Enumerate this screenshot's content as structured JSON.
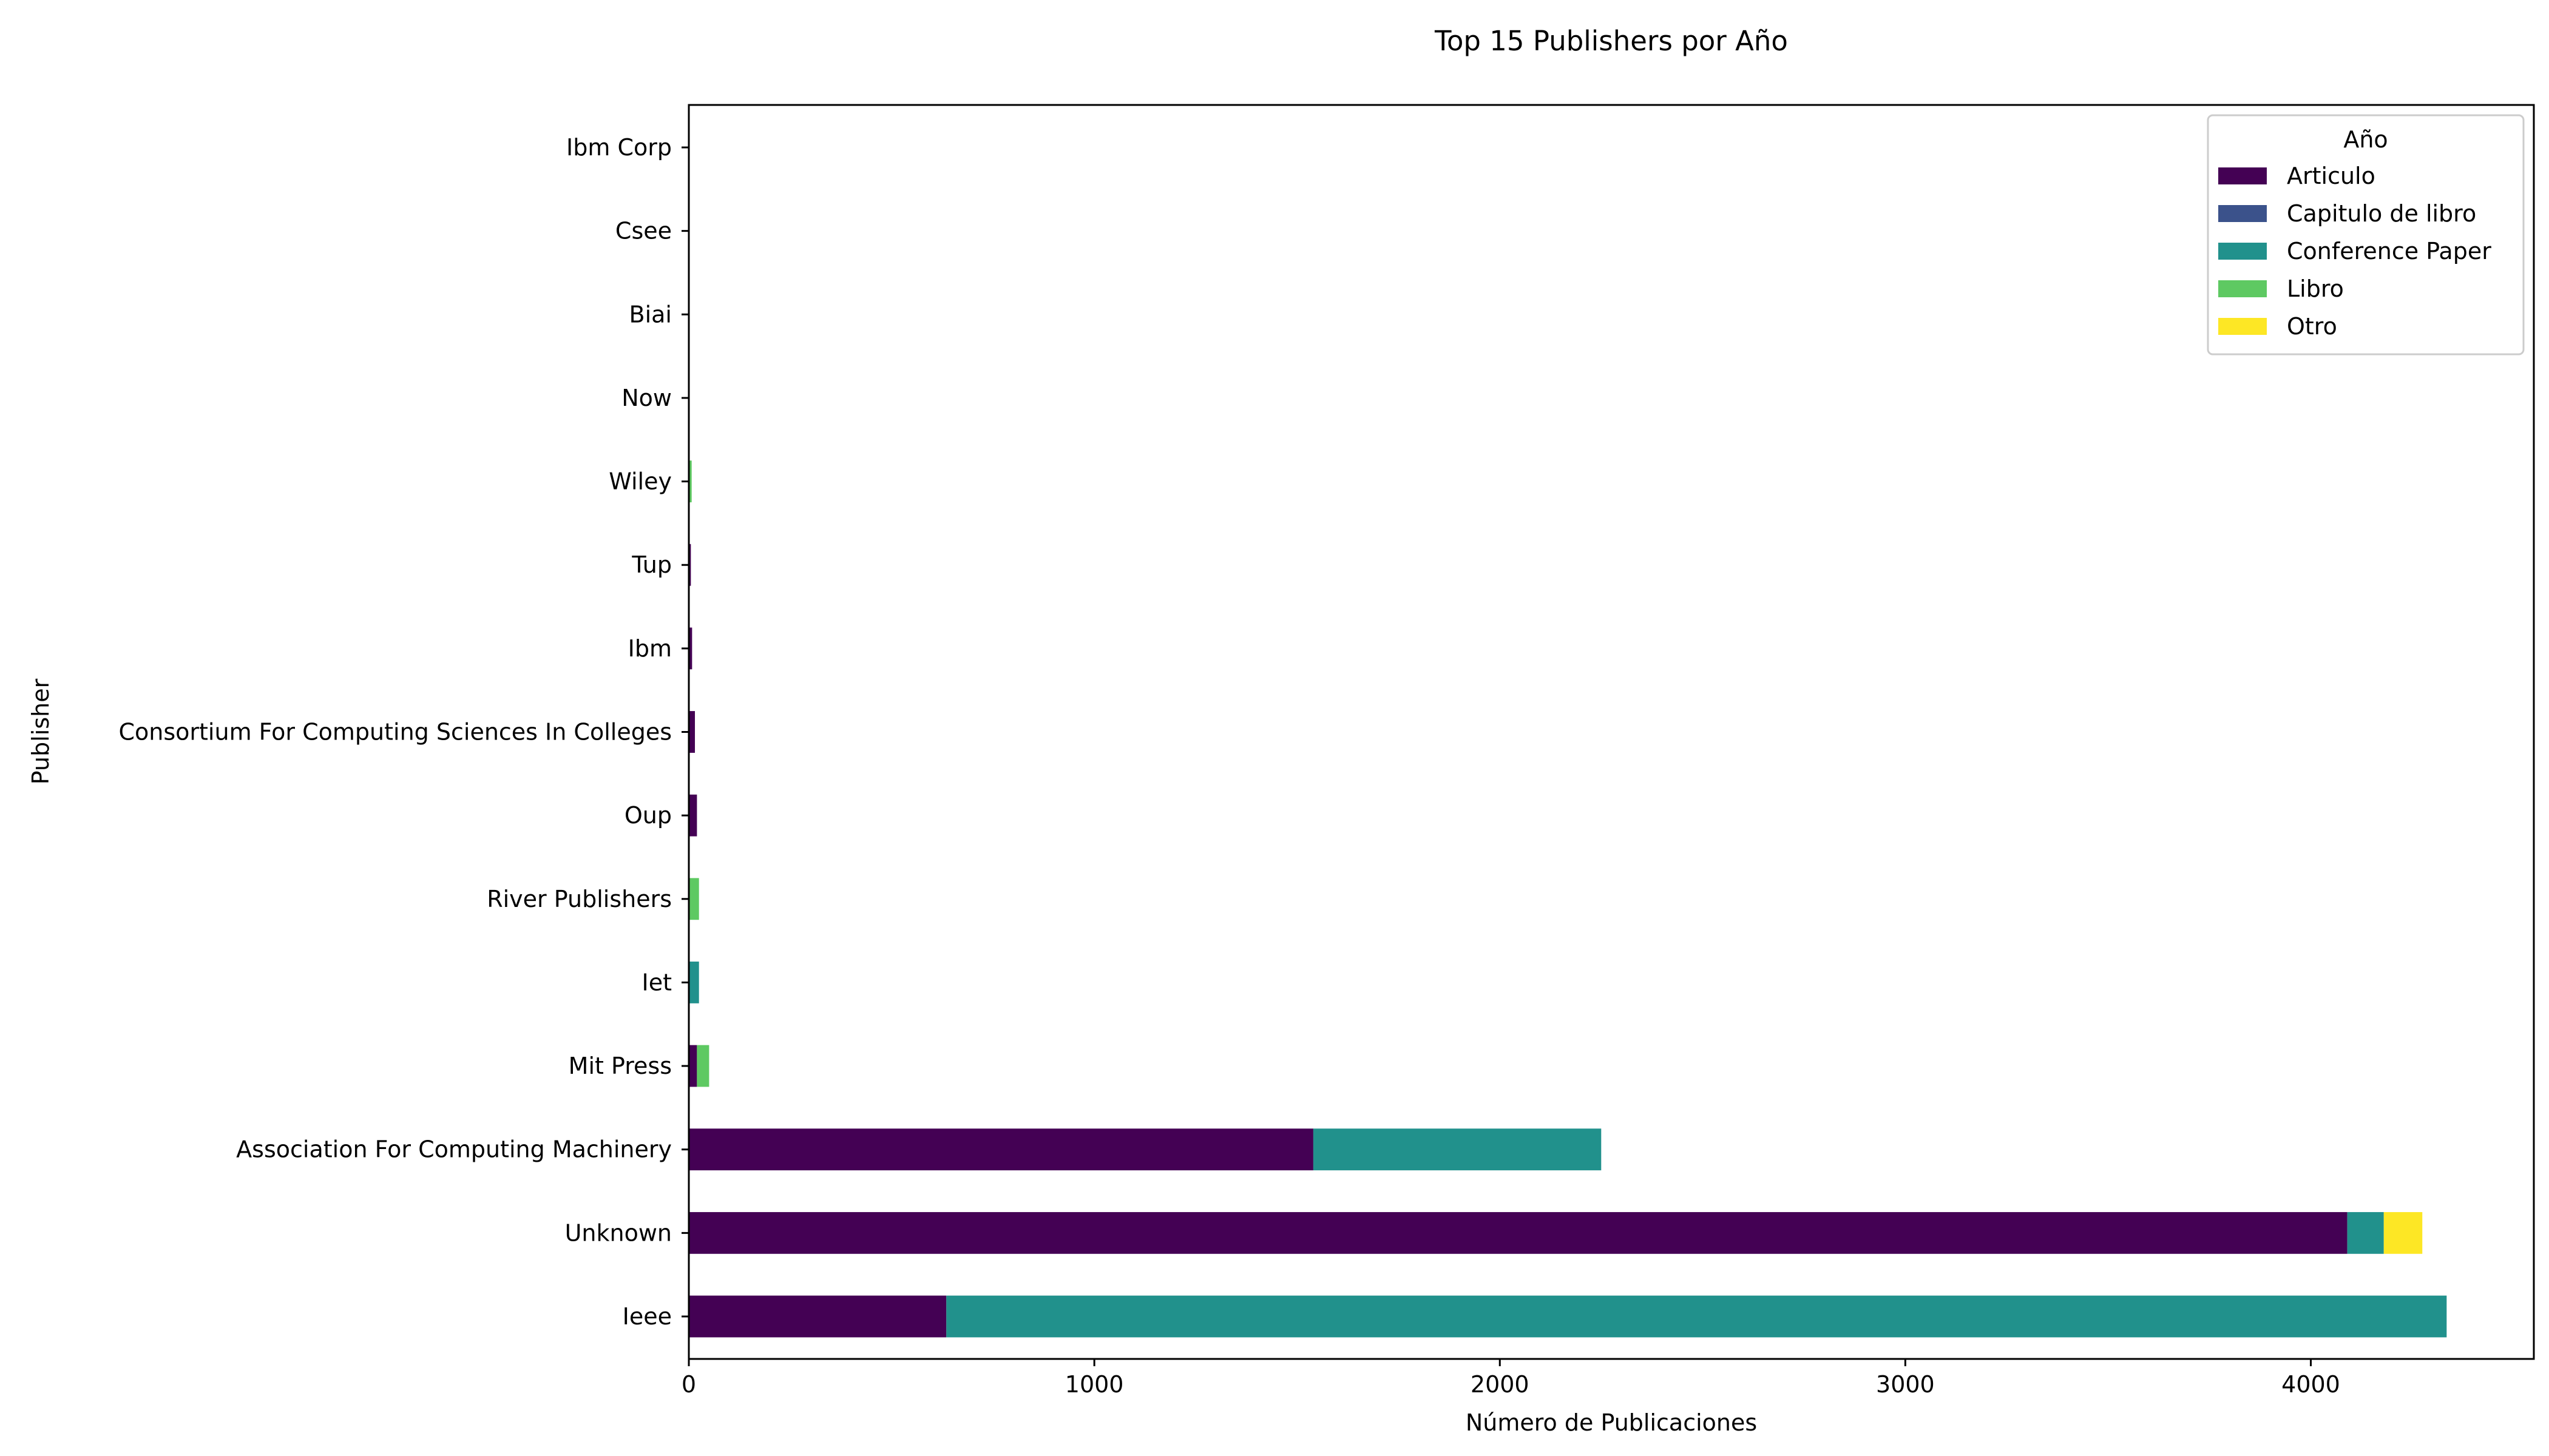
{
  "chart_data": {
    "type": "bar",
    "orientation": "horizontal",
    "stacked": true,
    "title": "Top 15 Publishers por Año",
    "xlabel": "Número de Publicaciones",
    "ylabel": "Publisher",
    "xlim": [
      0,
      4550
    ],
    "xticks": [
      0,
      1000,
      2000,
      3000,
      4000
    ],
    "grid": false,
    "legend": {
      "title": "Año",
      "position": "top-right"
    },
    "categories": [
      "Ieee",
      "Unknown",
      "Association For Computing Machinery",
      "Mit Press",
      "Iet",
      "River Publishers",
      "Oup",
      "Consortium For Computing Sciences In Colleges",
      "Ibm",
      "Tup",
      "Wiley",
      "Now",
      "Biai",
      "Csee",
      "Ibm Corp"
    ],
    "series": [
      {
        "name": "Articulo",
        "color": "#440154",
        "values": [
          635,
          4090,
          1540,
          20,
          0,
          0,
          20,
          15,
          8,
          5,
          2,
          0,
          0,
          0,
          0
        ]
      },
      {
        "name": "Capitulo de libro",
        "color": "#3b528b",
        "values": [
          0,
          0,
          0,
          0,
          0,
          0,
          0,
          0,
          0,
          0,
          0,
          0,
          0,
          0,
          0
        ]
      },
      {
        "name": "Conference Paper",
        "color": "#21918c",
        "values": [
          3700,
          90,
          710,
          0,
          25,
          0,
          0,
          0,
          0,
          0,
          0,
          0,
          0,
          0,
          0
        ]
      },
      {
        "name": "Libro",
        "color": "#5ec962",
        "values": [
          0,
          0,
          0,
          30,
          0,
          25,
          0,
          0,
          0,
          0,
          5,
          2,
          1,
          1,
          1
        ]
      },
      {
        "name": "Otro",
        "color": "#fde725",
        "values": [
          0,
          95,
          0,
          0,
          0,
          0,
          0,
          0,
          0,
          0,
          0,
          0,
          0,
          0,
          0
        ]
      }
    ]
  }
}
